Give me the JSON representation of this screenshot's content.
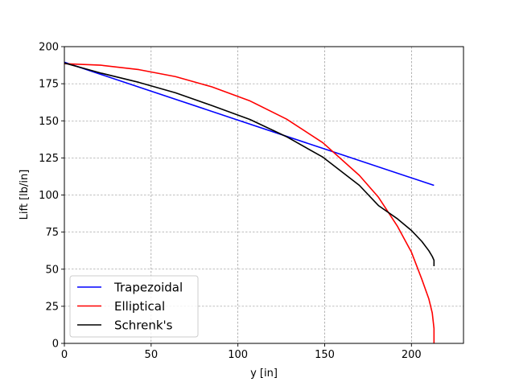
{
  "chart_data": {
    "type": "line",
    "xlabel": "y [in]",
    "ylabel": "Lift [lb/in]",
    "xlim": [
      0,
      230
    ],
    "ylim": [
      0,
      200
    ],
    "xticks": [
      0,
      50,
      100,
      150,
      200
    ],
    "yticks": [
      0,
      25,
      50,
      75,
      100,
      125,
      150,
      175,
      200
    ],
    "grid": true,
    "legend_position": "lower-left",
    "series": [
      {
        "name": "Trapezoidal",
        "color": "#0000ff",
        "x": [
          0,
          50,
          100,
          150,
          213
        ],
        "y": [
          189.5,
          170.0,
          150.5,
          131.0,
          106.5
        ]
      },
      {
        "name": "Elliptical",
        "color": "#ff0000",
        "x": [
          0,
          21,
          43,
          64,
          85,
          107,
          128,
          149,
          170,
          181,
          192,
          200,
          206,
          210,
          212,
          213,
          213
        ],
        "y": [
          188.5,
          187.5,
          184.5,
          179.8,
          172.9,
          163.4,
          151.2,
          135.2,
          113.2,
          98.5,
          78.8,
          61.5,
          43.2,
          30.1,
          20.5,
          10.0,
          0
        ]
      },
      {
        "name": "Schrenk's",
        "color": "#000000",
        "x": [
          0,
          21,
          43,
          64,
          85,
          107,
          128,
          149,
          170,
          181,
          192,
          200,
          206,
          210,
          212,
          213,
          213
        ],
        "y": [
          189.0,
          182.2,
          175.9,
          168.9,
          160.3,
          150.9,
          139.3,
          125.5,
          106.5,
          92.9,
          83.9,
          76.1,
          68.7,
          62.5,
          58.6,
          56.0,
          52.0
        ]
      }
    ]
  }
}
